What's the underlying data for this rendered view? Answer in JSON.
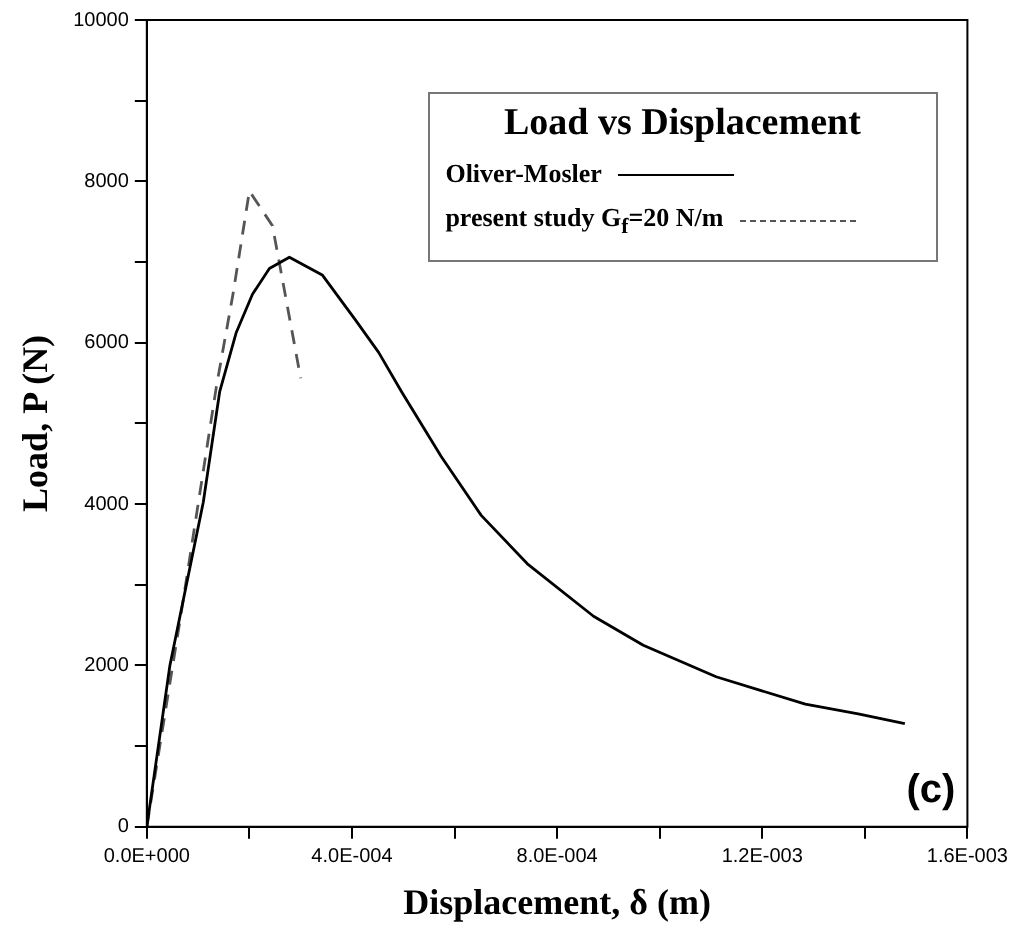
{
  "chart_data": {
    "type": "line",
    "legend_title": "Load vs Displacement",
    "xlabel": "Displacement, δ (m)",
    "ylabel": "Load, P (N)",
    "legend": "top right",
    "grid": false,
    "marker": "none",
    "xlim": [
      0,
      0.0016
    ],
    "xticks": [
      {
        "value": 0,
        "label": "0.0E+000"
      },
      {
        "value": 0.0002,
        "label": null
      },
      {
        "value": 0.0004,
        "label": "4.0E-004"
      },
      {
        "value": 0.0006,
        "label": null
      },
      {
        "value": 0.0008,
        "label": "8.0E-004"
      },
      {
        "value": 0.001,
        "label": null
      },
      {
        "value": 0.0012,
        "label": "1.2E-003"
      },
      {
        "value": 0.0014,
        "label": null
      },
      {
        "value": 0.0016,
        "label": "1.6E-003"
      }
    ],
    "ylim": [
      0,
      10000
    ],
    "yticks": [
      0,
      {
        "value": 1000,
        "label": null
      },
      2000,
      {
        "value": 3000,
        "label": null
      },
      4000,
      {
        "value": 5000,
        "label": null
      },
      6000,
      {
        "value": 7000,
        "label": null
      },
      8000,
      {
        "value": 9000,
        "label": null
      },
      10000
    ],
    "annotations": [
      "(c)"
    ],
    "series": [
      {
        "name": "Oliver-Mosler",
        "color": "#000000",
        "line_style": "solid",
        "x": [
          0,
          4.5e-05,
          0.00011,
          0.000142,
          0.000174,
          0.000206,
          0.000239,
          0.000278,
          0.000342,
          0.000407,
          0.000452,
          0.000497,
          0.000574,
          0.000652,
          0.000742,
          0.000871,
          0.000968,
          0.00111,
          0.001284,
          0.001387,
          0.001478
        ],
        "values": [
          0,
          2000,
          4020,
          5390,
          6120,
          6600,
          6920,
          7060,
          6840,
          6280,
          5880,
          5390,
          4590,
          3860,
          3260,
          2610,
          2250,
          1860,
          1520,
          1400,
          1280
        ]
      },
      {
        "name": "present study G$_{f}$=20 N/m",
        "color": "#555555",
        "line_style": "dashed",
        "x": [
          0,
          7.1e-05,
          0.000136,
          0.000168,
          0.0002,
          0.000245,
          0.0003
        ],
        "values": [
          0,
          2810,
          5470,
          6600,
          7880,
          7450,
          5560
        ]
      }
    ]
  }
}
